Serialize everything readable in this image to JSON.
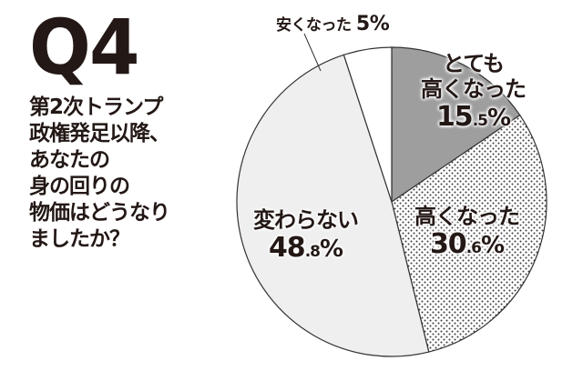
{
  "header": {
    "q_label": "Q4",
    "question_lines": [
      "第2次トランプ",
      "政権発足以降、",
      "あなたの",
      "身の回りの",
      "物価はどうなり",
      "ましたか？"
    ]
  },
  "labels": {
    "very_higher": {
      "line1": "とても",
      "line2": "高くなった",
      "int": "15",
      "dec": ".5",
      "pct": "%"
    },
    "higher": {
      "line1": "高くなった",
      "int": "30",
      "dec": ".6",
      "pct": "%"
    },
    "unchanged": {
      "line1": "変わらない",
      "int": "48",
      "dec": ".8",
      "pct": "%"
    },
    "cheaper": {
      "line1": "安くなった",
      "value": "5%"
    }
  },
  "colors": {
    "very_higher": "#9e9e9e",
    "higher_dots": "#3a3a3a",
    "unchanged": "#efefef",
    "cheaper": "#ffffff",
    "outline": "#333333",
    "text": "#231815"
  },
  "chart_data": {
    "type": "pie",
    "title": "第2次トランプ政権発足以降、あなたの身の回りの物価はどうなりましたか？",
    "question_number": "Q4",
    "categories": [
      "とても高くなった",
      "高くなった",
      "変わらない",
      "安くなった"
    ],
    "values": [
      15.5,
      30.6,
      48.8,
      5.0
    ],
    "unit": "%",
    "start_angle": "12 o'clock, clockwise",
    "fills": [
      "solid gray",
      "dot pattern",
      "light gray",
      "white"
    ]
  }
}
